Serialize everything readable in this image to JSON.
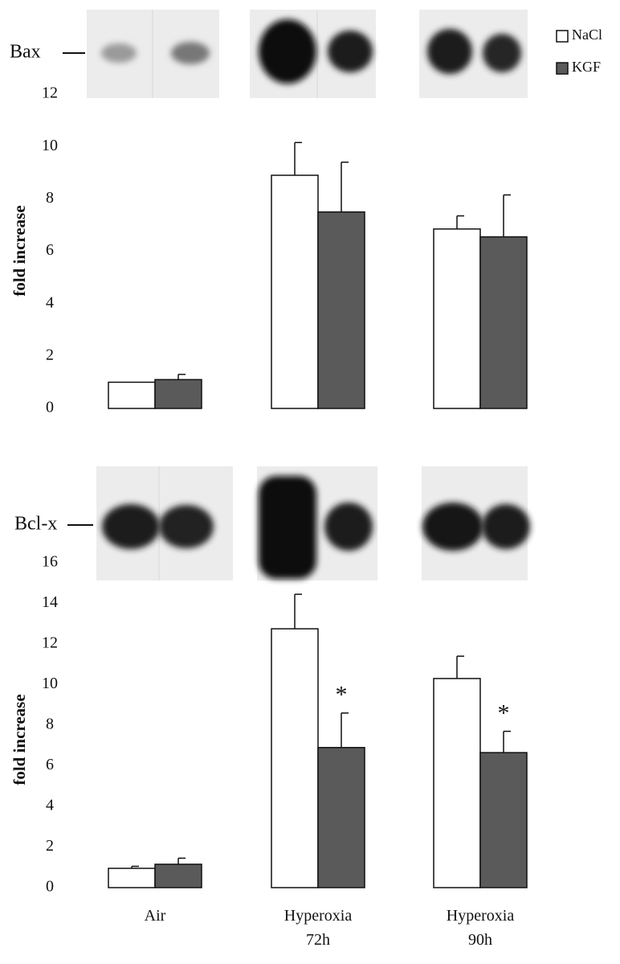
{
  "chart_data": [
    {
      "type": "bar",
      "blot_label": "Bax",
      "y_label": "fold increase",
      "ylim": [
        0,
        12
      ],
      "yticks": [
        0,
        2,
        4,
        6,
        8,
        10,
        12
      ],
      "series": [
        {
          "name": "NaCl",
          "color": "#ffffff",
          "values": [
            1.0,
            8.9,
            6.85
          ],
          "errors": [
            0,
            1.25,
            0.5
          ]
        },
        {
          "name": "KGF",
          "color": "#5a5a5a",
          "values": [
            1.1,
            7.5,
            6.55
          ],
          "errors": [
            0.2,
            1.9,
            1.6
          ]
        }
      ]
    },
    {
      "type": "bar",
      "blot_label": "Bcl-x",
      "y_label": "fold increase",
      "categories": [
        "Air",
        "Hyperoxia\n72h",
        "Hyperoxia\n90h"
      ],
      "ylim": [
        0,
        16
      ],
      "yticks": [
        0,
        2,
        4,
        6,
        8,
        10,
        12,
        14,
        16
      ],
      "series": [
        {
          "color": "#ffffff",
          "values": [
            0.95,
            12.75,
            10.3
          ],
          "errors": [
            0.1,
            1.7,
            1.1
          ]
        },
        {
          "color": "#5a5a5a",
          "values": [
            1.15,
            6.9,
            6.65
          ],
          "errors": [
            0.3,
            1.7,
            1.05
          ]
        }
      ],
      "annotations": [
        "*",
        "*"
      ]
    }
  ]
}
